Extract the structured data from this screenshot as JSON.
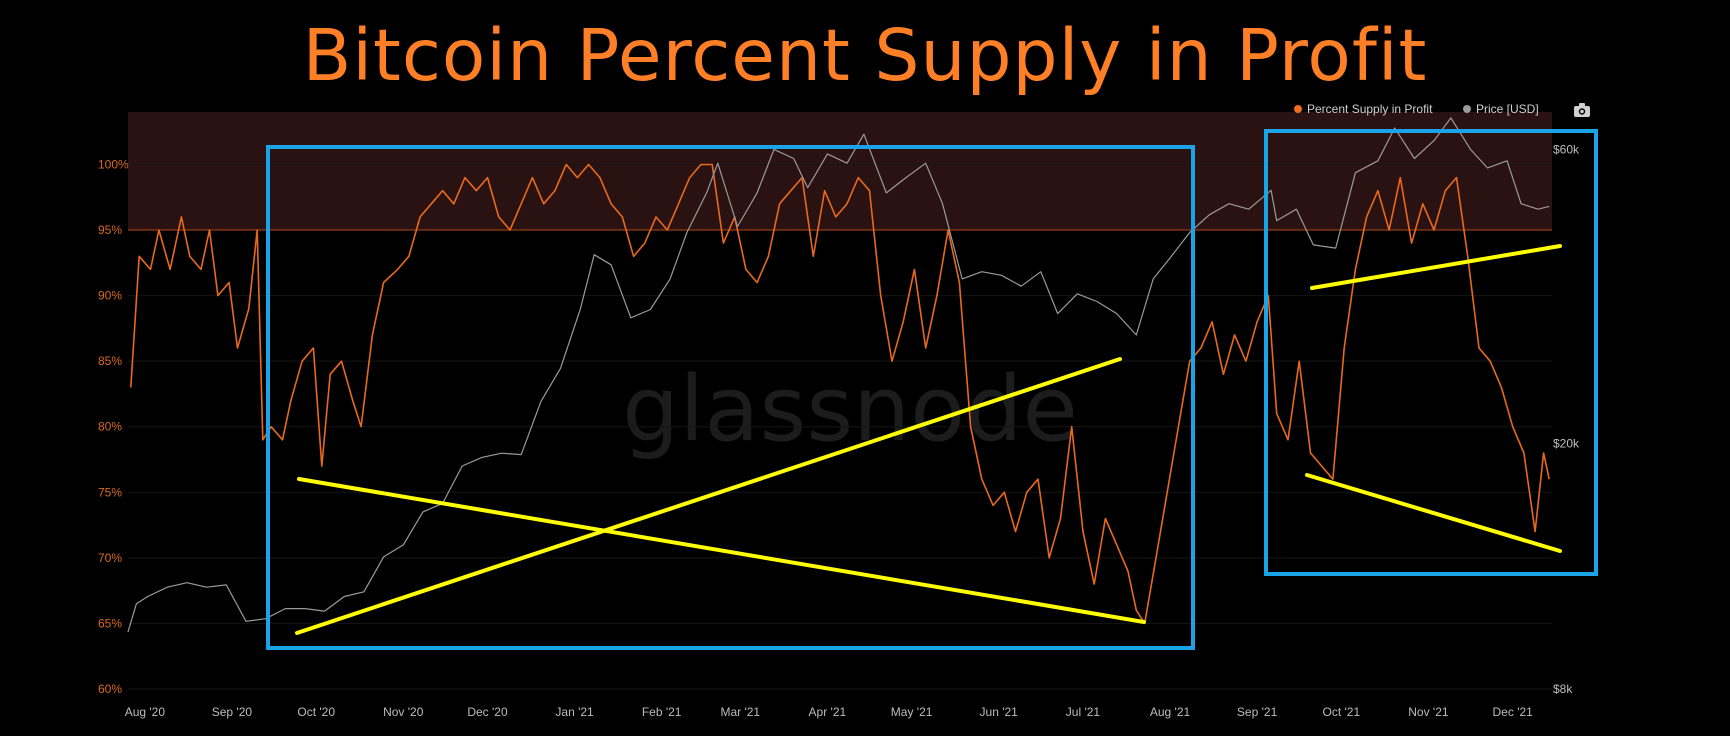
{
  "title": "Bitcoin Percent Supply in Profit",
  "watermark": "glassnode",
  "legend": [
    {
      "label": "Percent Supply in Profit",
      "color": "#f26d1c"
    },
    {
      "label": "Price [USD]",
      "color": "#9a9a9a"
    }
  ],
  "camera_icon": "camera-icon",
  "colors": {
    "profit": "#e8691c",
    "price": "#9a9a9a",
    "band": "#2a1212",
    "threshold": "#b5461c",
    "highlight_box": "#1ba3e8",
    "trendline": "#ffff00",
    "left_axis_text": "#d86a20",
    "right_axis_text": "#bdbdbd"
  },
  "chart_data": {
    "type": "line",
    "x_ticks": [
      "Aug '20",
      "Sep '20",
      "Oct '20",
      "Nov '20",
      "Dec '20",
      "Jan '21",
      "Feb '21",
      "Mar '21",
      "Apr '21",
      "May '21",
      "Jun '21",
      "Jul '21",
      "Aug '21",
      "Sep '21",
      "Oct '21",
      "Nov '21",
      "Dec '21"
    ],
    "x_range": [
      "2020-07-26",
      "2021-12-15"
    ],
    "y_left": {
      "ticks": [
        "60%",
        "65%",
        "70%",
        "75%",
        "80%",
        "85%",
        "90%",
        "95%",
        "100%"
      ],
      "range": [
        60,
        104
      ],
      "unit": "%"
    },
    "y_right": {
      "ticks": [
        "$8k",
        "$20k",
        "$60k"
      ],
      "scale": "log",
      "range": [
        8000,
        69000
      ]
    },
    "threshold": 95,
    "series": [
      {
        "name": "Percent Supply in Profit",
        "axis": "left",
        "points": [
          [
            "2020-07-27",
            83
          ],
          [
            "2020-07-30",
            93
          ],
          [
            "2020-08-03",
            92
          ],
          [
            "2020-08-06",
            95
          ],
          [
            "2020-08-10",
            92
          ],
          [
            "2020-08-14",
            96
          ],
          [
            "2020-08-17",
            93
          ],
          [
            "2020-08-21",
            92
          ],
          [
            "2020-08-24",
            95
          ],
          [
            "2020-08-27",
            90
          ],
          [
            "2020-08-31",
            91
          ],
          [
            "2020-09-03",
            86
          ],
          [
            "2020-09-07",
            89
          ],
          [
            "2020-09-10",
            95
          ],
          [
            "2020-09-12",
            79
          ],
          [
            "2020-09-15",
            80
          ],
          [
            "2020-09-19",
            79
          ],
          [
            "2020-09-22",
            82
          ],
          [
            "2020-09-26",
            85
          ],
          [
            "2020-09-30",
            86
          ],
          [
            "2020-10-03",
            77
          ],
          [
            "2020-10-06",
            84
          ],
          [
            "2020-10-10",
            85
          ],
          [
            "2020-10-14",
            82
          ],
          [
            "2020-10-17",
            80
          ],
          [
            "2020-10-21",
            87
          ],
          [
            "2020-10-25",
            91
          ],
          [
            "2020-10-30",
            92
          ],
          [
            "2020-11-03",
            93
          ],
          [
            "2020-11-07",
            96
          ],
          [
            "2020-11-11",
            97
          ],
          [
            "2020-11-15",
            98
          ],
          [
            "2020-11-19",
            97
          ],
          [
            "2020-11-23",
            99
          ],
          [
            "2020-11-27",
            98
          ],
          [
            "2020-12-01",
            99
          ],
          [
            "2020-12-05",
            96
          ],
          [
            "2020-12-09",
            95
          ],
          [
            "2020-12-13",
            97
          ],
          [
            "2020-12-17",
            99
          ],
          [
            "2020-12-21",
            97
          ],
          [
            "2020-12-25",
            98
          ],
          [
            "2020-12-29",
            100
          ],
          [
            "2021-01-02",
            99
          ],
          [
            "2021-01-06",
            100
          ],
          [
            "2021-01-10",
            99
          ],
          [
            "2021-01-14",
            97
          ],
          [
            "2021-01-18",
            96
          ],
          [
            "2021-01-22",
            93
          ],
          [
            "2021-01-26",
            94
          ],
          [
            "2021-01-30",
            96
          ],
          [
            "2021-02-03",
            95
          ],
          [
            "2021-02-07",
            97
          ],
          [
            "2021-02-11",
            99
          ],
          [
            "2021-02-15",
            100
          ],
          [
            "2021-02-19",
            100
          ],
          [
            "2021-02-23",
            94
          ],
          [
            "2021-02-27",
            96
          ],
          [
            "2021-03-03",
            92
          ],
          [
            "2021-03-07",
            91
          ],
          [
            "2021-03-11",
            93
          ],
          [
            "2021-03-15",
            97
          ],
          [
            "2021-03-19",
            98
          ],
          [
            "2021-03-23",
            99
          ],
          [
            "2021-03-27",
            93
          ],
          [
            "2021-03-31",
            98
          ],
          [
            "2021-04-04",
            96
          ],
          [
            "2021-04-08",
            97
          ],
          [
            "2021-04-12",
            99
          ],
          [
            "2021-04-16",
            98
          ],
          [
            "2021-04-20",
            90
          ],
          [
            "2021-04-24",
            85
          ],
          [
            "2021-04-28",
            88
          ],
          [
            "2021-05-02",
            92
          ],
          [
            "2021-05-06",
            86
          ],
          [
            "2021-05-10",
            90
          ],
          [
            "2021-05-14",
            95
          ],
          [
            "2021-05-18",
            91
          ],
          [
            "2021-05-22",
            80
          ],
          [
            "2021-05-26",
            76
          ],
          [
            "2021-05-30",
            74
          ],
          [
            "2021-06-03",
            75
          ],
          [
            "2021-06-07",
            72
          ],
          [
            "2021-06-11",
            75
          ],
          [
            "2021-06-15",
            76
          ],
          [
            "2021-06-19",
            70
          ],
          [
            "2021-06-23",
            73
          ],
          [
            "2021-06-27",
            80
          ],
          [
            "2021-07-01",
            72
          ],
          [
            "2021-07-05",
            68
          ],
          [
            "2021-07-09",
            73
          ],
          [
            "2021-07-13",
            71
          ],
          [
            "2021-07-17",
            69
          ],
          [
            "2021-07-20",
            66
          ],
          [
            "2021-07-23",
            65
          ],
          [
            "2021-07-27",
            70
          ],
          [
            "2021-07-31",
            75
          ],
          [
            "2021-08-04",
            80
          ],
          [
            "2021-08-08",
            85
          ],
          [
            "2021-08-12",
            86
          ],
          [
            "2021-08-16",
            88
          ],
          [
            "2021-08-20",
            84
          ],
          [
            "2021-08-24",
            87
          ],
          [
            "2021-08-28",
            85
          ],
          [
            "2021-09-01",
            88
          ],
          [
            "2021-09-05",
            90
          ],
          [
            "2021-09-08",
            81
          ],
          [
            "2021-09-12",
            79
          ],
          [
            "2021-09-16",
            85
          ],
          [
            "2021-09-20",
            78
          ],
          [
            "2021-09-24",
            77
          ],
          [
            "2021-09-28",
            76
          ],
          [
            "2021-10-02",
            86
          ],
          [
            "2021-10-06",
            92
          ],
          [
            "2021-10-10",
            96
          ],
          [
            "2021-10-14",
            98
          ],
          [
            "2021-10-18",
            95
          ],
          [
            "2021-10-22",
            99
          ],
          [
            "2021-10-26",
            94
          ],
          [
            "2021-10-30",
            97
          ],
          [
            "2021-11-03",
            95
          ],
          [
            "2021-11-07",
            98
          ],
          [
            "2021-11-11",
            99
          ],
          [
            "2021-11-15",
            93
          ],
          [
            "2021-11-19",
            86
          ],
          [
            "2021-11-23",
            85
          ],
          [
            "2021-11-27",
            83
          ],
          [
            "2021-12-01",
            80
          ],
          [
            "2021-12-05",
            78
          ],
          [
            "2021-12-09",
            72
          ],
          [
            "2021-12-12",
            78
          ],
          [
            "2021-12-14",
            76
          ]
        ]
      },
      {
        "name": "Price [USD]",
        "axis": "right",
        "points": [
          [
            "2020-07-26",
            9900
          ],
          [
            "2020-07-29",
            11000
          ],
          [
            "2020-08-02",
            11300
          ],
          [
            "2020-08-09",
            11700
          ],
          [
            "2020-08-16",
            11900
          ],
          [
            "2020-08-23",
            11700
          ],
          [
            "2020-08-30",
            11800
          ],
          [
            "2020-09-06",
            10300
          ],
          [
            "2020-09-13",
            10400
          ],
          [
            "2020-09-20",
            10800
          ],
          [
            "2020-09-27",
            10800
          ],
          [
            "2020-10-04",
            10700
          ],
          [
            "2020-10-11",
            11300
          ],
          [
            "2020-10-18",
            11500
          ],
          [
            "2020-10-25",
            13100
          ],
          [
            "2020-11-01",
            13700
          ],
          [
            "2020-11-08",
            15500
          ],
          [
            "2020-11-15",
            16000
          ],
          [
            "2020-11-22",
            18400
          ],
          [
            "2020-11-29",
            19000
          ],
          [
            "2020-12-06",
            19300
          ],
          [
            "2020-12-13",
            19200
          ],
          [
            "2020-12-20",
            23400
          ],
          [
            "2020-12-27",
            26500
          ],
          [
            "2021-01-03",
            33000
          ],
          [
            "2021-01-08",
            40500
          ],
          [
            "2021-01-14",
            39000
          ],
          [
            "2021-01-21",
            32000
          ],
          [
            "2021-01-28",
            33000
          ],
          [
            "2021-02-04",
            37000
          ],
          [
            "2021-02-10",
            44000
          ],
          [
            "2021-02-17",
            51000
          ],
          [
            "2021-02-21",
            57000
          ],
          [
            "2021-02-28",
            45000
          ],
          [
            "2021-03-07",
            51000
          ],
          [
            "2021-03-13",
            60000
          ],
          [
            "2021-03-20",
            58000
          ],
          [
            "2021-03-25",
            52000
          ],
          [
            "2021-04-01",
            59000
          ],
          [
            "2021-04-08",
            57000
          ],
          [
            "2021-04-14",
            63500
          ],
          [
            "2021-04-22",
            51000
          ],
          [
            "2021-04-29",
            54000
          ],
          [
            "2021-05-06",
            57000
          ],
          [
            "2021-05-12",
            49000
          ],
          [
            "2021-05-19",
            37000
          ],
          [
            "2021-05-26",
            38000
          ],
          [
            "2021-06-02",
            37500
          ],
          [
            "2021-06-09",
            36000
          ],
          [
            "2021-06-16",
            38000
          ],
          [
            "2021-06-22",
            32500
          ],
          [
            "2021-06-29",
            35000
          ],
          [
            "2021-07-06",
            34000
          ],
          [
            "2021-07-13",
            32500
          ],
          [
            "2021-07-20",
            30000
          ],
          [
            "2021-07-26",
            37000
          ],
          [
            "2021-08-01",
            40000
          ],
          [
            "2021-08-08",
            44000
          ],
          [
            "2021-08-15",
            47000
          ],
          [
            "2021-08-22",
            49000
          ],
          [
            "2021-08-29",
            48000
          ],
          [
            "2021-09-06",
            51500
          ],
          [
            "2021-09-08",
            46000
          ],
          [
            "2021-09-15",
            48000
          ],
          [
            "2021-09-21",
            42000
          ],
          [
            "2021-09-29",
            41500
          ],
          [
            "2021-10-06",
            55000
          ],
          [
            "2021-10-14",
            57500
          ],
          [
            "2021-10-20",
            65000
          ],
          [
            "2021-10-27",
            58000
          ],
          [
            "2021-11-03",
            62000
          ],
          [
            "2021-11-09",
            67500
          ],
          [
            "2021-11-16",
            60000
          ],
          [
            "2021-11-22",
            56000
          ],
          [
            "2021-11-29",
            57500
          ],
          [
            "2021-12-04",
            49000
          ],
          [
            "2021-12-10",
            48000
          ],
          [
            "2021-12-14",
            48500
          ]
        ]
      }
    ]
  }
}
